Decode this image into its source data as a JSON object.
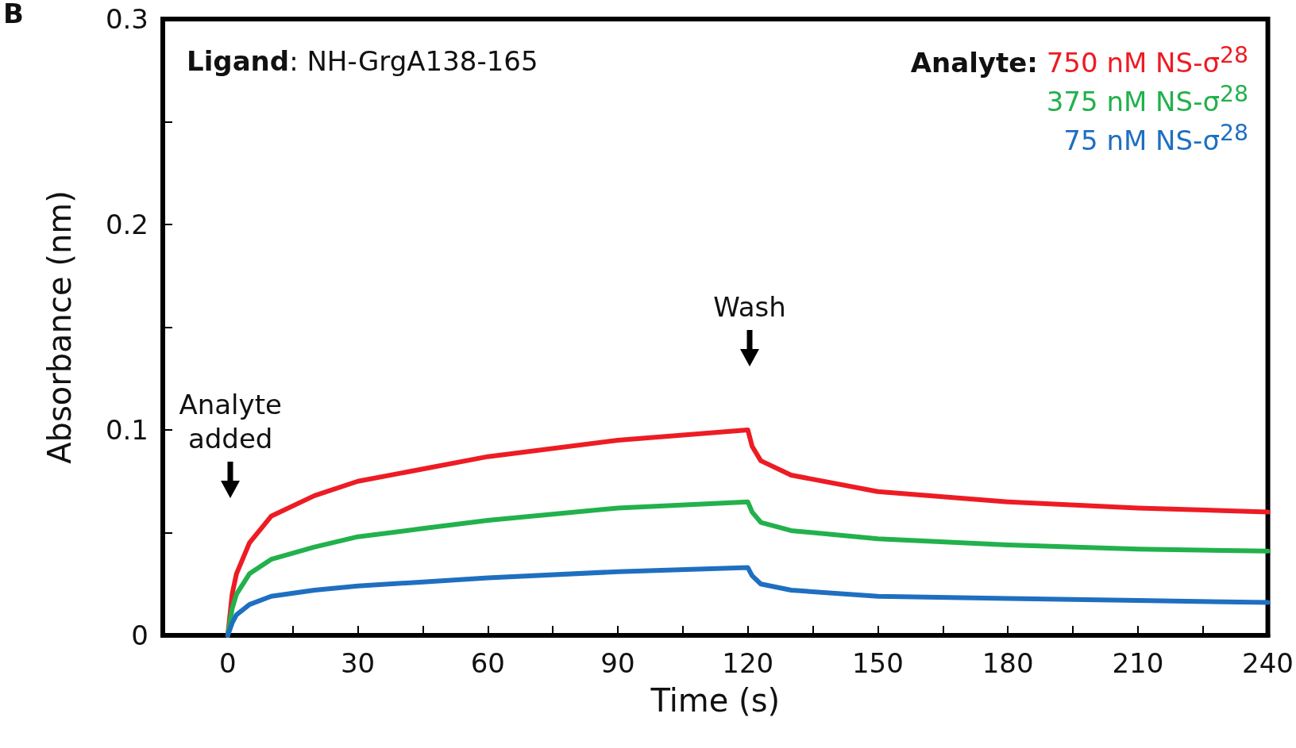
{
  "chart_data": {
    "type": "line",
    "xlabel": "Time (s)",
    "ylabel": "Absorbance (nm)",
    "legend_title": "Analyte:",
    "legend": "top right",
    "grid": false,
    "marker": "none",
    "line_style": "solid",
    "xlim": [
      -15,
      240
    ],
    "xticks": [
      0,
      {
        "value": 15,
        "label": null
      },
      30,
      {
        "value": 45,
        "label": null
      },
      60,
      {
        "value": 75,
        "label": null
      },
      90,
      {
        "value": 105,
        "label": null
      },
      120,
      {
        "value": 135,
        "label": null
      },
      150,
      {
        "value": 165,
        "label": null
      },
      180,
      {
        "value": 195,
        "label": null
      },
      210,
      {
        "value": 225,
        "label": null
      },
      240
    ],
    "ylim": [
      0,
      0.3
    ],
    "yticks": [
      0,
      {
        "value": 0.05,
        "label": null
      },
      0.1,
      {
        "value": 0.15,
        "label": null
      },
      0.2,
      {
        "value": 0.25,
        "label": null
      },
      0.3
    ],
    "x": [
      0,
      1,
      2,
      5,
      10,
      20,
      30,
      45,
      60,
      90,
      120,
      121,
      123,
      130,
      150,
      180,
      210,
      240
    ],
    "series": [
      {
        "name": "750 nM NS-σ$^{28}$",
        "color": "#ed1c24",
        "values": [
          0,
          0.02,
          0.03,
          0.045,
          0.058,
          0.068,
          0.075,
          0.081,
          0.087,
          0.095,
          0.1,
          0.092,
          0.085,
          0.078,
          0.07,
          0.065,
          0.062,
          0.06
        ]
      },
      {
        "name": "375 nM NS-σ$^{28}$",
        "color": "#22b14c",
        "values": [
          0,
          0.013,
          0.02,
          0.03,
          0.037,
          0.043,
          0.048,
          0.052,
          0.056,
          0.062,
          0.065,
          0.06,
          0.055,
          0.051,
          0.047,
          0.044,
          0.042,
          0.041
        ]
      },
      {
        "name": "75 nM NS-σ$^{28}$",
        "color": "#1f6fc0",
        "values": [
          0,
          0.006,
          0.01,
          0.015,
          0.019,
          0.022,
          0.024,
          0.026,
          0.028,
          0.031,
          0.033,
          0.029,
          0.025,
          0.022,
          0.019,
          0.018,
          0.017,
          0.016
        ]
      }
    ],
    "annotations": [
      "B",
      "Ligand: NH-GrgA138-165",
      "Analyte added",
      "Wash"
    ]
  }
}
